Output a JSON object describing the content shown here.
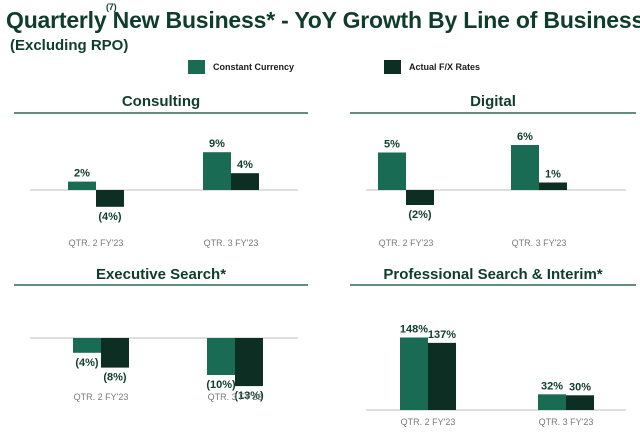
{
  "title": "Quarterly New Business* - YoY Growth By Line of Business",
  "title_footnote": "(7)",
  "subtitle": "(Excluding RPO)",
  "colors": {
    "constant_currency": "#1a6b53",
    "actual_fx": "#0d2e23",
    "title": "#0f3d2c",
    "line": "#2c6a57"
  },
  "legend": {
    "constant_currency": "Constant Currency",
    "actual_fx": "Actual F/X Rates"
  },
  "chart_data": [
    {
      "type": "bar",
      "title": "Consulting",
      "categories": [
        "QTR. 2 FY'23",
        "QTR. 3 FY'23"
      ],
      "series": [
        {
          "name": "Constant Currency",
          "values": [
            2,
            9
          ],
          "labels": [
            "2%",
            "9%"
          ]
        },
        {
          "name": "Actual F/X Rates",
          "values": [
            -4,
            4
          ],
          "labels": [
            "(4%)",
            "4%"
          ]
        }
      ]
    },
    {
      "type": "bar",
      "title": "Digital",
      "categories": [
        "QTR. 2 FY'23",
        "QTR. 3 FY'23"
      ],
      "series": [
        {
          "name": "Constant Currency",
          "values": [
            5,
            6
          ],
          "labels": [
            "5%",
            "6%"
          ]
        },
        {
          "name": "Actual F/X Rates",
          "values": [
            -2,
            1
          ],
          "labels": [
            "(2%)",
            "1%"
          ]
        }
      ]
    },
    {
      "type": "bar",
      "title": "Executive Search*",
      "categories": [
        "QTR. 2 FY'23",
        "QTR. 3 FY'23"
      ],
      "series": [
        {
          "name": "Constant Currency",
          "values": [
            -4,
            -10
          ],
          "labels": [
            "(4%)",
            "(10%)"
          ]
        },
        {
          "name": "Actual F/X Rates",
          "values": [
            -8,
            -13
          ],
          "labels": [
            "(8%)",
            "(13%)"
          ]
        }
      ]
    },
    {
      "type": "bar",
      "title": "Professional Search & Interim*",
      "categories": [
        "QTR. 2 FY'23",
        "QTR. 3 FY'23"
      ],
      "series": [
        {
          "name": "Constant Currency",
          "values": [
            148,
            32
          ],
          "labels": [
            "148%",
            "32%"
          ]
        },
        {
          "name": "Actual F/X Rates",
          "values": [
            137,
            30
          ],
          "labels": [
            "137%",
            "30%"
          ]
        }
      ]
    }
  ]
}
